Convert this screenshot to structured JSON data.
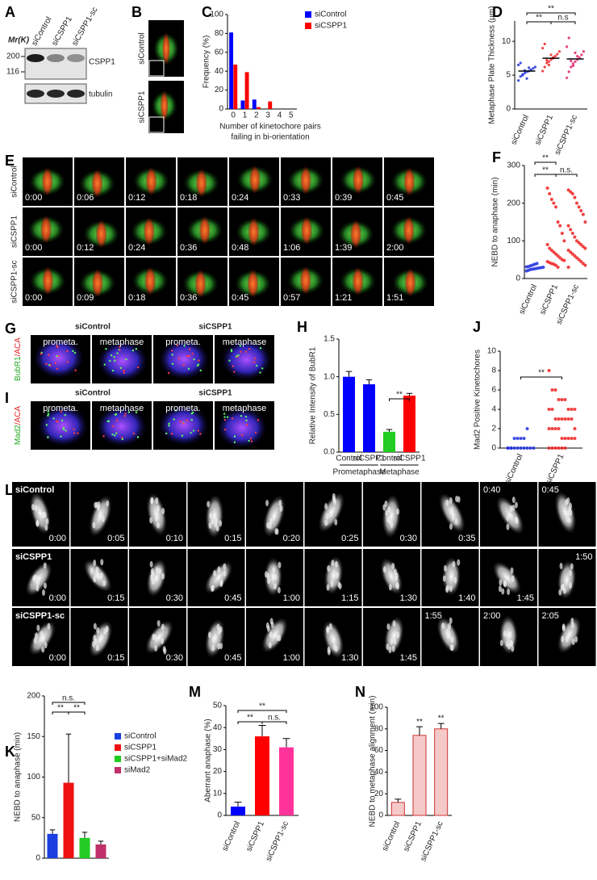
{
  "letters": [
    "A",
    "B",
    "C",
    "D",
    "E",
    "F",
    "G",
    "H",
    "I",
    "J",
    "K",
    "L",
    "M",
    "N"
  ],
  "blot": {
    "mw_label": "Mr(K)",
    "markers": [
      "200",
      "116"
    ],
    "lanes": [
      "siControl",
      "siCSPP1",
      "siCSPP1-sc"
    ],
    "bands": [
      "CSPP1",
      "tubulin"
    ]
  },
  "panel_b": {
    "rows": [
      "siControl",
      "siCSPP1"
    ]
  },
  "panel_e": {
    "rows": [
      {
        "label": "siControl",
        "times": [
          "0:00",
          "0:06",
          "0:12",
          "0:18",
          "0:24",
          "0:33",
          "0:39",
          "0:45"
        ]
      },
      {
        "label": "siCSPP1",
        "times": [
          "0:00",
          "0:12",
          "0:24",
          "0:36",
          "0:48",
          "1:06",
          "1:39",
          "2:00"
        ]
      },
      {
        "label": "siCSPP1-sc",
        "times": [
          "0:00",
          "0:09",
          "0:18",
          "0:36",
          "0:45",
          "0:57",
          "1:21",
          "1:51"
        ]
      }
    ]
  },
  "panel_g": {
    "stain": [
      "BubR1",
      "/ACA"
    ],
    "conditions": [
      "siControl",
      "siCSPP1"
    ],
    "phases": [
      "prometa.",
      "metaphase",
      "prometa.",
      "metaphase"
    ]
  },
  "panel_i": {
    "stain": [
      "Mad2",
      "/ACA"
    ],
    "conditions": [
      "siControl",
      "siCSPP1"
    ],
    "phases": [
      "prometa.",
      "metaphase",
      "prometa.",
      "metaphase"
    ]
  },
  "panel_l": {
    "rows": [
      {
        "label": "siControl",
        "times": [
          "0:00",
          "0:05",
          "0:10",
          "0:15",
          "0:20",
          "0:25",
          "0:30",
          "0:35",
          "0:40",
          "0:45"
        ]
      },
      {
        "label": "siCSPP1",
        "times": [
          "0:00",
          "0:15",
          "0:30",
          "0:45",
          "1:00",
          "1:15",
          "1:30",
          "1:40",
          "1:45",
          "1:50"
        ]
      },
      {
        "label": "siCSPP1-sc",
        "times": [
          "0:00",
          "0:15",
          "0:30",
          "0:45",
          "1:00",
          "1:30",
          "1:45",
          "1:55",
          "2:00",
          "2:05"
        ]
      }
    ]
  },
  "chart_data": [
    {
      "type": "bar",
      "ylabel": "Frequency (%)",
      "xlabel": [
        "Number of kinetochore pairs",
        "failing in bi-orientation"
      ],
      "categories": [
        "0",
        "1",
        "2",
        "3",
        "4",
        "5"
      ],
      "series": [
        {
          "name": "siControl",
          "color": "#0000ff",
          "values": [
            81,
            9,
            10,
            0,
            0,
            0
          ]
        },
        {
          "name": "siCSPP1",
          "color": "#ff0000",
          "values": [
            47,
            39,
            2,
            8,
            0,
            0
          ]
        }
      ],
      "ylim": [
        0,
        100
      ],
      "yticks": [
        0,
        20,
        40,
        60,
        80,
        100
      ],
      "legend": "upper right"
    },
    {
      "type": "strip",
      "ylabel": "Metaphase Plate Thickness (μm)",
      "categories": [
        "siControl",
        "siCSPP1",
        "siCSPP1-sc"
      ],
      "colors": [
        "#2233dd",
        "#ee2222",
        "#e0206a"
      ],
      "points": [
        [
          4.2,
          4.8,
          5.0,
          5.3,
          5.5,
          5.6,
          5.8,
          6.0,
          6.2,
          6.5,
          6.8,
          5.1,
          5.7,
          4.5,
          6.1
        ],
        [
          5.6,
          6.2,
          6.8,
          7.0,
          7.3,
          7.5,
          7.8,
          8.1,
          8.5,
          9.0,
          9.6,
          7.2,
          6.5,
          8.0,
          7.6
        ],
        [
          4.6,
          5.5,
          6.2,
          6.7,
          7.0,
          7.3,
          7.6,
          8.0,
          8.5,
          9.2,
          10.5,
          7.1,
          6.4,
          8.3,
          7.8
        ]
      ],
      "means": [
        5.6,
        7.5,
        7.4
      ],
      "ylim": [
        0,
        13
      ],
      "yticks": [
        0,
        5,
        10
      ],
      "annotations": [
        "**",
        "**",
        "n.s"
      ]
    },
    {
      "type": "strip",
      "ylabel": "NEBD to anaphase (min)",
      "categories": [
        "siControl",
        "siCSPP1",
        "siCSPP1-sc"
      ],
      "colors": [
        "#2233dd",
        "#ee2222",
        "#ee2222"
      ],
      "points": [
        [
          20,
          22,
          24,
          25,
          26,
          27,
          28,
          29,
          30,
          31,
          32,
          34,
          36,
          38,
          40
        ],
        [
          240,
          225,
          210,
          200,
          190,
          150,
          140,
          120,
          100,
          90,
          80,
          75,
          70,
          65,
          60,
          55,
          50,
          48,
          45,
          42,
          40,
          38,
          35,
          30
        ],
        [
          235,
          230,
          225,
          215,
          200,
          190,
          180,
          170,
          150,
          140,
          130,
          120,
          110,
          100,
          95,
          90,
          85,
          80,
          75,
          70,
          65,
          60,
          55,
          50,
          45,
          40,
          35,
          30
        ]
      ],
      "ylim": [
        0,
        300
      ],
      "yticks": [
        0,
        100,
        200,
        300
      ],
      "annotations": [
        "**",
        "**",
        "n.s."
      ]
    },
    {
      "type": "bar",
      "ylabel": "Relative Intensity of BubR1",
      "categories": [
        "Control",
        "siCSPP1",
        "Control",
        "siCSPP1"
      ],
      "group_labels": [
        "Prometaphase",
        "Metaphase"
      ],
      "values": [
        1.0,
        0.9,
        0.27,
        0.75
      ],
      "errors": [
        0.07,
        0.06,
        0.03,
        0.03
      ],
      "colors": [
        "#0000ff",
        "#0000ff",
        "#22cc22",
        "#ff0000"
      ],
      "ylim": [
        0,
        1.5
      ],
      "yticks": [
        {
          "value": 0,
          "label": "0.0"
        },
        {
          "value": 0.5,
          "label": "0.5"
        },
        {
          "value": 1,
          "label": "1.0"
        },
        {
          "value": 1.5,
          "label": "1.5"
        }
      ],
      "annotations": [
        "**"
      ]
    },
    {
      "type": "strip",
      "ylabel": "Mad2 Positive Kinetochores",
      "categories": [
        "siControl",
        "siCSPP1"
      ],
      "colors": [
        "#2233dd",
        "#ee2222"
      ],
      "points": [
        [
          0,
          0,
          0,
          0,
          0,
          0,
          0,
          0,
          0,
          0,
          0,
          1,
          1,
          1,
          1,
          2
        ],
        [
          8,
          6,
          6,
          5,
          5,
          5,
          4,
          4,
          4,
          4,
          4,
          3,
          3,
          3,
          3,
          3,
          3,
          2,
          2,
          2,
          2,
          2,
          1,
          1,
          1,
          1,
          1,
          0,
          0,
          0,
          0,
          0,
          0
        ]
      ],
      "ylim": [
        0,
        10
      ],
      "yticks": [
        0,
        2,
        4,
        6,
        8,
        10
      ],
      "annotations": [
        "**"
      ]
    },
    {
      "type": "bar",
      "ylabel": "NEBD to anaphase (min)",
      "series": [
        {
          "name": "siControl",
          "color": "#1a3fe0",
          "values": [
            30
          ],
          "errors": [
            5
          ]
        },
        {
          "name": "siCSPP1",
          "color": "#ee1111",
          "values": [
            93
          ],
          "errors": [
            60
          ]
        },
        {
          "name": "siCSPP1+siMad2",
          "color": "#22cc22",
          "values": [
            25
          ],
          "errors": [
            7
          ]
        },
        {
          "name": "siMad2",
          "color": "#c0306a",
          "values": [
            17
          ],
          "errors": [
            4
          ]
        }
      ],
      "ylim": [
        0,
        200
      ],
      "yticks": [
        0,
        50,
        100,
        150,
        200
      ],
      "annotations": [
        "n.s.",
        "**",
        "**"
      ],
      "legend": "right"
    },
    {
      "type": "bar",
      "ylabel": "Aberrant anaphase (%)",
      "categories": [
        "siControl",
        "siCSPP1",
        "siCSPP1-sc"
      ],
      "values": [
        4,
        36,
        31
      ],
      "errors": [
        2,
        5,
        4
      ],
      "colors": [
        "#0000ff",
        "#ff0000",
        "#ff3399"
      ],
      "ylim": [
        0,
        50
      ],
      "yticks": [
        0,
        10,
        20,
        30,
        40,
        50
      ],
      "annotations": [
        "**",
        "**",
        "n.s."
      ]
    },
    {
      "type": "bar",
      "ylabel": "NEBD to metaphase alignment (min)",
      "ylabel_color": "#0000cc",
      "categories": [
        "siControl",
        "siCSPP1",
        "siCSPP1-sc"
      ],
      "values": [
        12,
        74,
        80
      ],
      "errors": [
        3,
        8,
        5
      ],
      "colors": [
        "#f6c9c9",
        "#f6c9c9",
        "#f6c9c9"
      ],
      "ylim": [
        0,
        100
      ],
      "yticks": [
        0,
        20,
        40,
        60,
        80,
        100
      ],
      "annotations": [
        "**",
        "**"
      ],
      "annotation_colors": [
        "#000000",
        "#ee2222"
      ]
    }
  ]
}
